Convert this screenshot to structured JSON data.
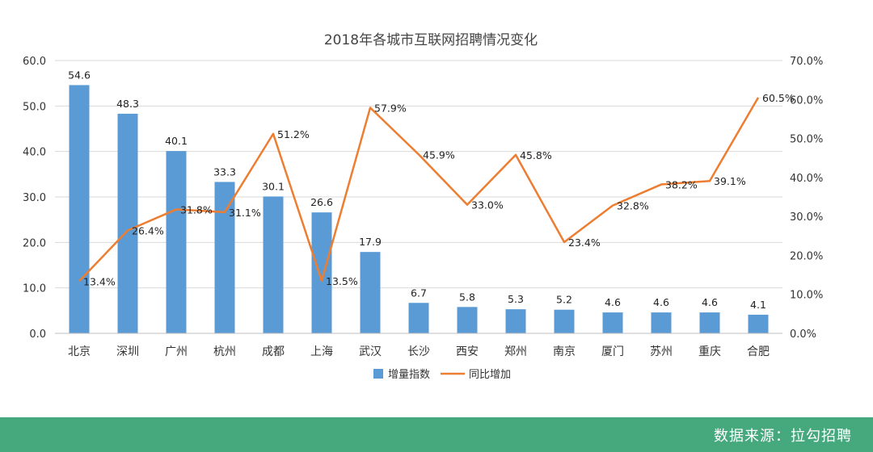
{
  "chart_data": {
    "type": "bar",
    "title": "2018年各城市互联网招聘情况变化",
    "categories": [
      "北京",
      "深圳",
      "广州",
      "杭州",
      "成都",
      "上海",
      "武汉",
      "长沙",
      "西安",
      "郑州",
      "南京",
      "厦门",
      "苏州",
      "重庆",
      "合肥"
    ],
    "series": [
      {
        "name": "增量指数",
        "type": "bar",
        "axis": "left",
        "values": [
          54.6,
          48.3,
          40.1,
          33.3,
          30.1,
          26.6,
          17.9,
          6.7,
          5.8,
          5.3,
          5.2,
          4.6,
          4.6,
          4.6,
          4.1
        ],
        "labels": [
          "54.6",
          "48.3",
          "40.1",
          "33.3",
          "30.1",
          "26.6",
          "17.9",
          "6.7",
          "5.8",
          "5.3",
          "5.2",
          "4.6",
          "4.6",
          "4.6",
          "4.1"
        ]
      },
      {
        "name": "同比增加",
        "type": "line",
        "axis": "right",
        "values": [
          13.4,
          26.4,
          31.8,
          31.1,
          51.2,
          13.5,
          57.9,
          45.9,
          33.0,
          45.8,
          23.4,
          32.8,
          38.2,
          39.1,
          60.5
        ],
        "labels": [
          "13.4%",
          "26.4%",
          "31.8%",
          "31.1%",
          "51.2%",
          "13.5%",
          "57.9%",
          "45.9%",
          "33.0%",
          "45.8%",
          "23.4%",
          "32.8%",
          "38.2%",
          "39.1%",
          "60.5%"
        ]
      }
    ],
    "ylim_left": [
      0,
      60
    ],
    "ylim_right": [
      0,
      70
    ],
    "left_ticks": [
      "0.0",
      "10.0",
      "20.0",
      "30.0",
      "40.0",
      "50.0",
      "60.0"
    ],
    "right_ticks": [
      "0.0%",
      "10.0%",
      "20.0%",
      "30.0%",
      "40.0%",
      "50.0%",
      "60.0%",
      "70.0%"
    ],
    "legend_position": "bottom",
    "grid": true,
    "colors": {
      "bar": "#5b9bd5",
      "line": "#ed7d31",
      "grid": "#d9d9d9"
    }
  },
  "footer": {
    "source": "数据来源：拉勾招聘",
    "background": "#45a97d"
  }
}
